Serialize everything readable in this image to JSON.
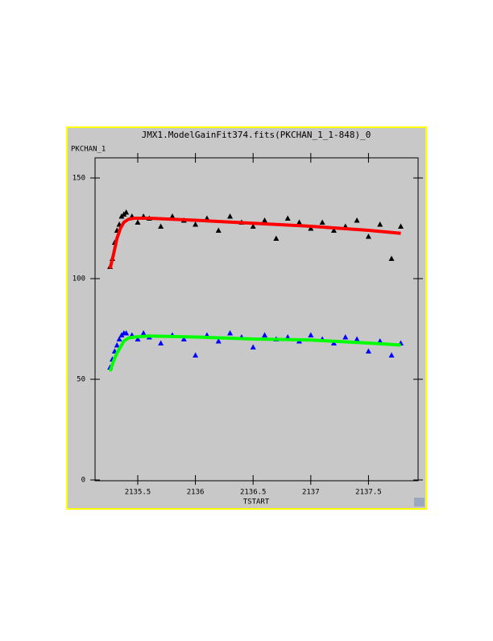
{
  "chart_data": {
    "type": "scatter",
    "title": "JMX1.ModelGainFit374.fits(PKCHAN_1_1-848)_0",
    "y_label": "PKCHAN_1",
    "x_label": "TSTART",
    "xlim": [
      2135.13,
      2137.93
    ],
    "ylim": [
      0,
      160
    ],
    "xticks": [
      2135.5,
      2136,
      2136.5,
      2137,
      2137.5
    ],
    "yticks": [
      0,
      50,
      100,
      150
    ],
    "series": [
      {
        "color": "#000000",
        "marker": "triangle",
        "x": [
          2135.26,
          2135.28,
          2135.3,
          2135.32,
          2135.34,
          2135.36,
          2135.38,
          2135.4,
          2135.45,
          2135.5,
          2135.55,
          2135.6,
          2135.7,
          2135.8,
          2135.9,
          2136.0,
          2136.1,
          2136.2,
          2136.3,
          2136.4,
          2136.5,
          2136.6,
          2136.7,
          2136.8,
          2136.9,
          2137.0,
          2137.1,
          2137.2,
          2137.3,
          2137.4,
          2137.5,
          2137.6,
          2137.7,
          2137.78
        ],
        "values": [
          106,
          110,
          118,
          124,
          127,
          131,
          132,
          133,
          131,
          128,
          131,
          130,
          126,
          131,
          129,
          127,
          130,
          124,
          131,
          128,
          126,
          129,
          120,
          130,
          128,
          125,
          128,
          124,
          126,
          129,
          121,
          127,
          110,
          126
        ]
      },
      {
        "color": "#0000ff",
        "marker": "triangle",
        "x": [
          2135.26,
          2135.28,
          2135.3,
          2135.32,
          2135.34,
          2135.36,
          2135.38,
          2135.4,
          2135.45,
          2135.5,
          2135.55,
          2135.6,
          2135.7,
          2135.8,
          2135.9,
          2136.0,
          2136.1,
          2136.2,
          2136.3,
          2136.4,
          2136.5,
          2136.6,
          2136.7,
          2136.8,
          2136.9,
          2137.0,
          2137.1,
          2137.2,
          2137.3,
          2137.4,
          2137.5,
          2137.6,
          2137.7,
          2137.78
        ],
        "values": [
          56,
          60,
          64,
          67,
          70,
          72,
          73,
          73,
          72,
          70,
          73,
          71,
          68,
          72,
          70,
          62,
          72,
          69,
          73,
          71,
          66,
          72,
          70,
          71,
          69,
          72,
          70,
          68,
          71,
          70,
          64,
          69,
          62,
          68
        ]
      },
      {
        "color": "#ff0000",
        "marker": "line",
        "x": [
          2135.26,
          2135.29,
          2135.32,
          2135.35,
          2135.38,
          2135.42,
          2135.47,
          2135.6,
          2136,
          2136.5,
          2137,
          2137.5,
          2137.78
        ],
        "values": [
          105,
          112,
          120,
          125,
          128,
          129.5,
          130,
          130,
          129,
          127.5,
          126,
          124,
          122.5
        ]
      },
      {
        "color": "#00ff00",
        "marker": "line",
        "x": [
          2135.26,
          2135.29,
          2135.32,
          2135.35,
          2135.38,
          2135.42,
          2135.47,
          2135.6,
          2136,
          2136.5,
          2137,
          2137.5,
          2137.78
        ],
        "values": [
          54,
          59,
          63,
          66,
          69,
          70.5,
          71,
          71.5,
          71,
          70,
          69.5,
          68,
          67
        ]
      }
    ]
  }
}
